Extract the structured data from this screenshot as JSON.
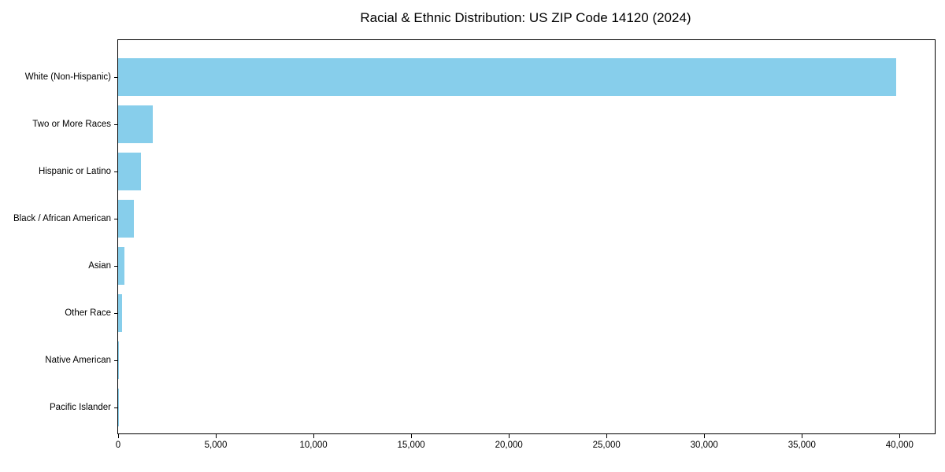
{
  "colors": {
    "bar": "#87CEEB",
    "axis": "#000000",
    "text": "#000000",
    "background": "#ffffff"
  },
  "chart_data": {
    "type": "bar",
    "orientation": "horizontal",
    "title": "Racial & Ethnic Distribution: US ZIP Code 14120 (2024)",
    "xlabel": "",
    "ylabel": "",
    "categories": [
      "White (Non-Hispanic)",
      "Two or More Races",
      "Hispanic or Latino",
      "Black / African American",
      "Asian",
      "Other Race",
      "Native American",
      "Pacific Islander"
    ],
    "values": [
      39836,
      1774,
      1169,
      818,
      340,
      214,
      40,
      10
    ],
    "xlim": [
      0,
      41800
    ],
    "x_ticks": [
      0,
      5000,
      10000,
      15000,
      20000,
      25000,
      30000,
      35000,
      40000
    ],
    "x_tick_labels": [
      "0",
      "5,000",
      "10,000",
      "15,000",
      "20,000",
      "25,000",
      "30,000",
      "35,000",
      "40,000"
    ],
    "grid": false,
    "legend": false,
    "bar_color": "#87CEEB"
  }
}
